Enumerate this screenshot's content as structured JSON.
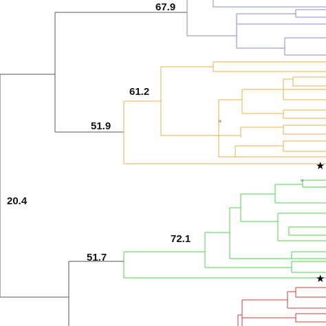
{
  "colors": {
    "root": "#555555",
    "clade_blue": "#8a8ad4",
    "clade_gold": "#e3b04b",
    "clade_green": "#48d448",
    "clade_red": "#d43a3a"
  },
  "node_labels": {
    "root": "20.4",
    "upper_group": "",
    "blue_clade": "67.9",
    "gold_clade": "51.9",
    "gold_subclade": "61.2",
    "green_clade": "51.7",
    "green_subclade": "72.1"
  },
  "markers": {
    "star": "★",
    "small_mark": "α"
  }
}
